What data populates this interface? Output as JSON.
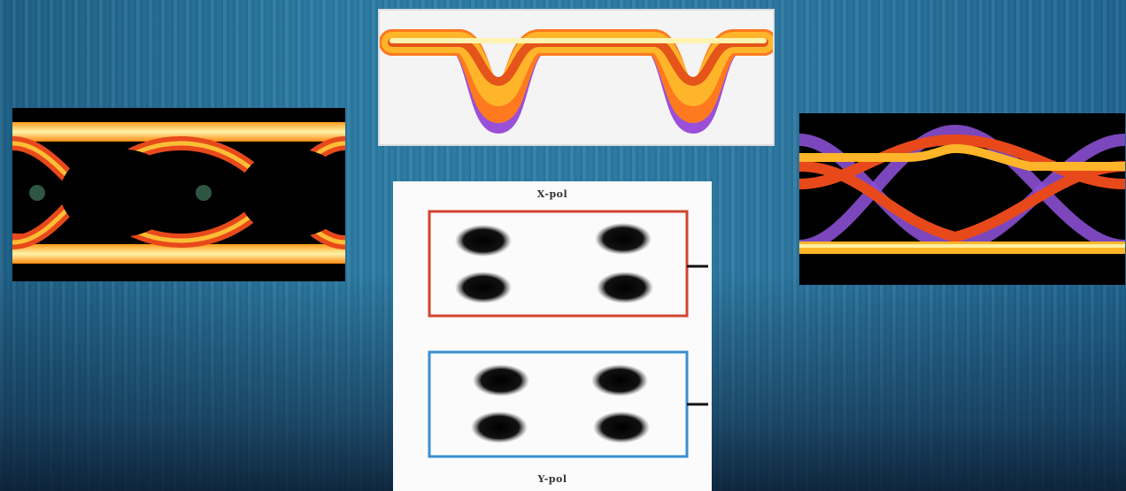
{
  "constellation": {
    "label_top": "X-pol",
    "label_bottom": "Y-pol"
  },
  "colors": {
    "eye_outer": "#ffcc33",
    "eye_inner": "#e03a1c",
    "eye_purple": "#8a4fd0",
    "pol_top_border": "#d2452e",
    "pol_bottom_border": "#3a8fd0"
  }
}
